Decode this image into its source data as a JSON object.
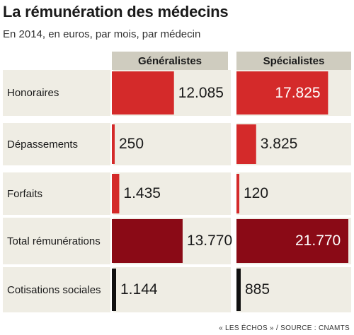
{
  "title": "La rémunération des médecins",
  "subtitle": "En 2014, en euros, par mois, par médecin",
  "source": "« LES ÉCHOS » / SOURCE : CNAMTS",
  "colors": {
    "red": "#d42a2a",
    "dark_red": "#8a0a16",
    "black": "#111111",
    "row_bg": "#efede4",
    "header_bg": "#cfccbf"
  },
  "chart_data": {
    "type": "bar",
    "categories": [
      "Honoraires",
      "Dépassements",
      "Forfaits",
      "Total rémunérations",
      "Cotisations sociales"
    ],
    "series": [
      {
        "name": "Généralistes",
        "values": [
          12085,
          250,
          1435,
          13770,
          1144
        ],
        "labels": [
          "12.085",
          "250",
          "1.435",
          "13.770",
          "1.144"
        ]
      },
      {
        "name": "Spécialistes",
        "values": [
          17825,
          3825,
          120,
          21770,
          885
        ],
        "labels": [
          "17.825",
          "3.825",
          "120",
          "21.770",
          "885"
        ]
      }
    ]
  }
}
